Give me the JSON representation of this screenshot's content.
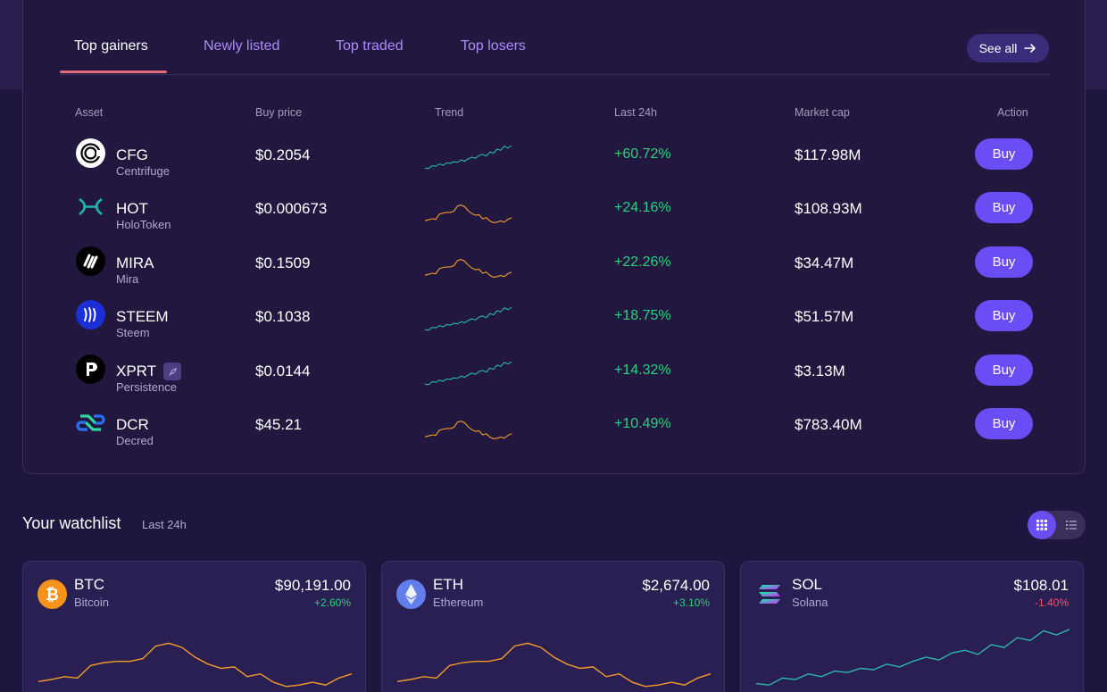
{
  "tabs": [
    {
      "label": "Top gainers",
      "active": true
    },
    {
      "label": "Newly listed",
      "active": false
    },
    {
      "label": "Top traded",
      "active": false
    },
    {
      "label": "Top losers",
      "active": false
    }
  ],
  "see_all_label": "See all",
  "columns": [
    "Asset",
    "Buy price",
    "Trend",
    "Last 24h",
    "Market cap",
    "Action"
  ],
  "buy_label": "Buy",
  "assets": [
    {
      "symbol": "CFG",
      "name": "Centrifuge",
      "price": "$0.2054",
      "change": "+60.72%",
      "market_cap": "$117.98M",
      "icon": "centrifuge-icon",
      "trend": "up",
      "trend_color": "#2ab7a9"
    },
    {
      "symbol": "HOT",
      "name": "HoloToken",
      "price": "$0.000673",
      "change": "+24.16%",
      "market_cap": "$108.93M",
      "icon": "holo-icon",
      "trend": "peak",
      "trend_color": "#f29c2a"
    },
    {
      "symbol": "MIRA",
      "name": "Mira",
      "price": "$0.1509",
      "change": "+22.26%",
      "market_cap": "$34.47M",
      "icon": "mira-icon",
      "trend": "peak",
      "trend_color": "#f29c2a"
    },
    {
      "symbol": "STEEM",
      "name": "Steem",
      "price": "$0.1038",
      "change": "+18.75%",
      "market_cap": "$51.57M",
      "icon": "steem-icon",
      "trend": "up",
      "trend_color": "#2ab7a9"
    },
    {
      "symbol": "XPRT",
      "name": "Persistence",
      "price": "$0.0144",
      "change": "+14.32%",
      "market_cap": "$3.13M",
      "icon": "persistence-icon",
      "trend": "up",
      "trend_color": "#2ab7a9",
      "tag_icon": "rocket-icon"
    },
    {
      "symbol": "DCR",
      "name": "Decred",
      "price": "$45.21",
      "change": "+10.49%",
      "market_cap": "$783.40M",
      "icon": "decred-icon",
      "trend": "peak",
      "trend_color": "#f29c2a"
    }
  ],
  "watchlist": {
    "title": "Your watchlist",
    "subtitle": "Last 24h",
    "cards": [
      {
        "symbol": "BTC",
        "name": "Bitcoin",
        "price": "$90,191.00",
        "change": "+2.60%",
        "direction": "up",
        "icon": "bitcoin-icon",
        "trend": "peak",
        "trend_color": "#f29c2a"
      },
      {
        "symbol": "ETH",
        "name": "Ethereum",
        "price": "$2,674.00",
        "change": "+3.10%",
        "direction": "up",
        "icon": "ethereum-icon",
        "trend": "peak",
        "trend_color": "#f29c2a"
      },
      {
        "symbol": "SOL",
        "name": "Solana",
        "price": "$108.01",
        "change": "-1.40%",
        "direction": "down",
        "icon": "solana-icon",
        "trend": "up",
        "trend_color": "#2ab7a9"
      }
    ]
  },
  "colors": {
    "accent": "#6a4df5",
    "positive": "#2ed07e",
    "negative": "#ff4d6a",
    "tab_inactive": "#a98cff",
    "tab_underline": "#e86a7d"
  }
}
